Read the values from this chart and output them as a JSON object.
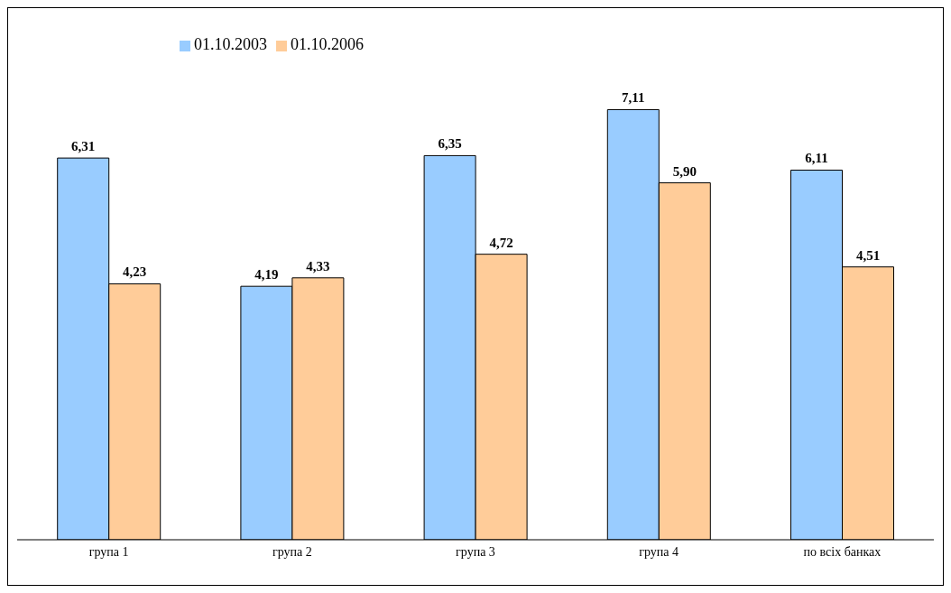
{
  "chart_data": {
    "type": "bar",
    "categories": [
      "група 1",
      "група 2",
      "група 3",
      "група 4",
      "по всіх банках"
    ],
    "series": [
      {
        "name": "01.10.2003",
        "color": "#99ccff",
        "values": [
          6.31,
          4.19,
          6.35,
          7.11,
          6.11
        ],
        "value_labels": [
          "6,31",
          "4,19",
          "6,35",
          "7,11",
          "6,11"
        ]
      },
      {
        "name": "01.10.2006",
        "color": "#ffcc99",
        "values": [
          4.23,
          4.33,
          4.72,
          5.9,
          4.51
        ],
        "value_labels": [
          "4,23",
          "4,33",
          "4,72",
          "5,90",
          "4,51"
        ]
      }
    ],
    "legend": "top",
    "grid": false
  }
}
